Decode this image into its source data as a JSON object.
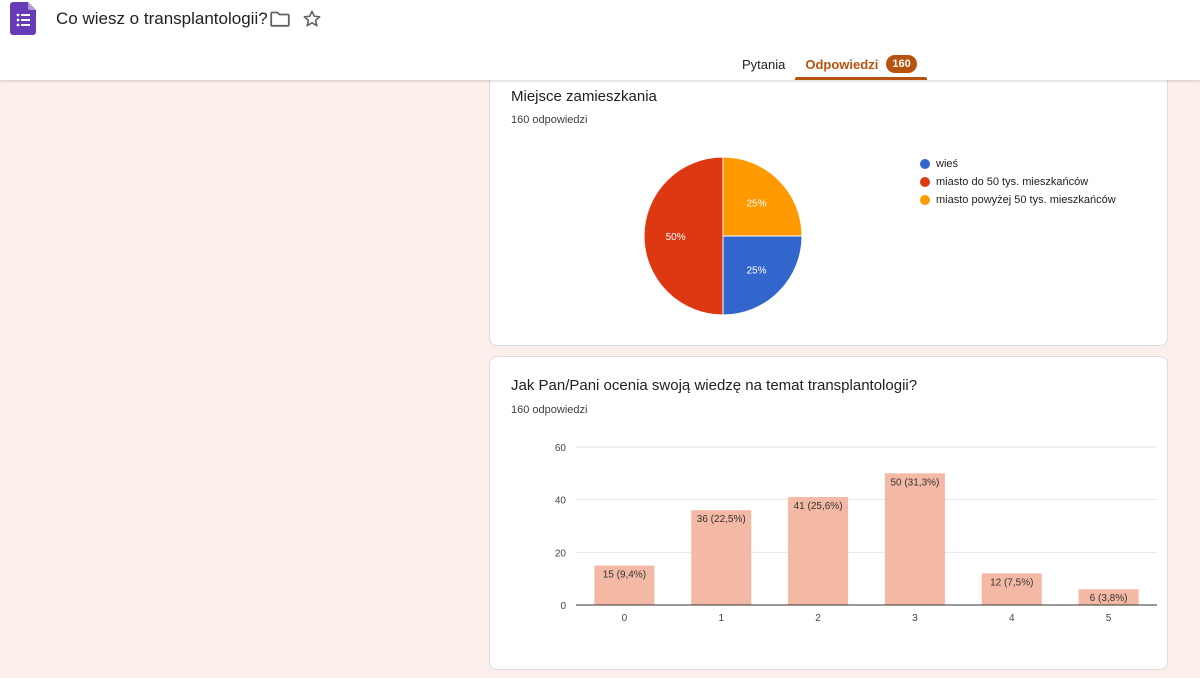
{
  "header": {
    "title": "Co wiesz o transplantologii?",
    "tabs": [
      {
        "label": "Pytania"
      },
      {
        "label": "Odpowiedzi",
        "badge": "160"
      }
    ]
  },
  "colors": {
    "accent": "#b7530e",
    "app_icon": "#673ab7",
    "pie_blue": "#3366cc",
    "pie_red": "#dc3912",
    "pie_orange": "#ff9900",
    "bar": "#f4b9a4"
  },
  "icons": {
    "app": "forms-icon",
    "folder": "folder-icon",
    "star": "star-icon"
  },
  "questions": [
    {
      "title": "Miejsce zamieszkania",
      "responses": "160 odpowiedzi"
    },
    {
      "title": "Jak Pan/Pani ocenia swoją wiedzę na temat transplantologii?",
      "responses": "160 odpowiedzi"
    }
  ],
  "chart_data": [
    {
      "type": "pie",
      "slices": [
        {
          "label": "wieś",
          "value": 25,
          "percent_label": "25%",
          "color": "#3366cc"
        },
        {
          "label": "miasto do 50 tys. mieszkańców",
          "value": 50,
          "percent_label": "50%",
          "color": "#dc3912"
        },
        {
          "label": "miasto powyżej 50 tys. mieszkańców",
          "value": 25,
          "percent_label": "25%",
          "color": "#ff9900"
        }
      ],
      "legend_position": "right"
    },
    {
      "type": "bar",
      "categories": [
        "0",
        "1",
        "2",
        "3",
        "4",
        "5"
      ],
      "values": [
        15,
        36,
        41,
        50,
        12,
        6
      ],
      "data_labels": [
        "15 (9,4%)",
        "36 (22,5%)",
        "41 (25,6%)",
        "50 (31,3%)",
        "12 (7,5%)",
        "6 (3,8%)"
      ],
      "y_ticks": [
        "0",
        "20",
        "40",
        "60"
      ],
      "ylim": [
        0,
        60
      ],
      "grid": true,
      "color": "#f4b9a4"
    }
  ]
}
